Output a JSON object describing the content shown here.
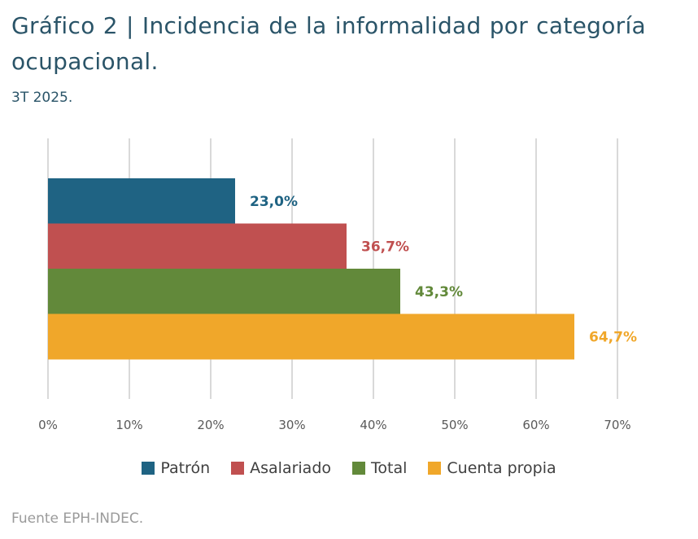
{
  "header": {
    "title": "Gráfico 2 | Incidencia de la informalidad por categoría ocupacional.",
    "subtitle": "3T 2025."
  },
  "footer": {
    "source": "Fuente EPH-INDEC."
  },
  "chart_data": {
    "type": "bar",
    "orientation": "horizontal",
    "title": "Gráfico 2 | Incidencia de la informalidad por categoría ocupacional.",
    "subtitle": "3T 2025.",
    "series": [
      {
        "name": "Patrón",
        "value": 23.0,
        "label": "23,0%",
        "color": "#1f6383"
      },
      {
        "name": "Asalariado",
        "value": 36.7,
        "label": "36,7%",
        "color": "#c05050"
      },
      {
        "name": "Total",
        "value": 43.3,
        "label": "43,3%",
        "color": "#62893a"
      },
      {
        "name": "Cuenta propia",
        "value": 64.7,
        "label": "64,7%",
        "color": "#f0a72a"
      }
    ],
    "xlim": [
      0,
      70
    ],
    "xticks": [
      "0%",
      "10%",
      "20%",
      "30%",
      "40%",
      "50%",
      "60%",
      "70%"
    ],
    "grid": true,
    "legend_position": "bottom"
  }
}
